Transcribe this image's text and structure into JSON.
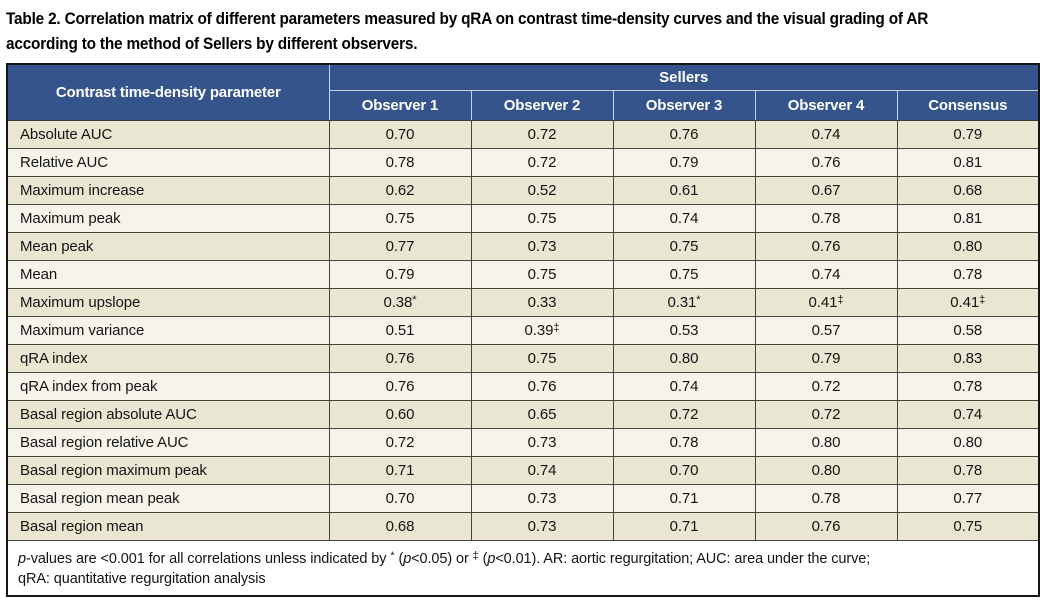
{
  "title": {
    "line1": "Table 2. Correlation matrix of different parameters measured by qRA on contrast time-density curves and the visual grading of AR",
    "line2": "according to the method of Sellers by different observers."
  },
  "table": {
    "param_header": "Contrast time-density parameter",
    "group_header": "Sellers",
    "observer_columns": [
      "Observer 1",
      "Observer 2",
      "Observer 3",
      "Observer 4",
      "Consensus"
    ],
    "rows": [
      {
        "param": "Absolute AUC",
        "values": [
          "0.70",
          "0.72",
          "0.76",
          "0.74",
          "0.79"
        ]
      },
      {
        "param": "Relative AUC",
        "values": [
          "0.78",
          "0.72",
          "0.79",
          "0.76",
          "0.81"
        ]
      },
      {
        "param": "Maximum increase",
        "values": [
          "0.62",
          "0.52",
          "0.61",
          "0.67",
          "0.68"
        ]
      },
      {
        "param": "Maximum peak",
        "values": [
          "0.75",
          "0.75",
          "0.74",
          "0.78",
          "0.81"
        ]
      },
      {
        "param": "Mean peak",
        "values": [
          "0.77",
          "0.73",
          "0.75",
          "0.76",
          "0.80"
        ]
      },
      {
        "param": "Mean",
        "values": [
          "0.79",
          "0.75",
          "0.75",
          "0.74",
          "0.78"
        ]
      },
      {
        "param": "Maximum upslope",
        "values": [
          "0.38*",
          "0.33",
          "0.31*",
          "0.41‡",
          "0.41‡"
        ]
      },
      {
        "param": "Maximum variance",
        "values": [
          "0.51",
          "0.39‡",
          "0.53",
          "0.57",
          "0.58"
        ]
      },
      {
        "param": "qRA index",
        "values": [
          "0.76",
          "0.75",
          "0.80",
          "0.79",
          "0.83"
        ]
      },
      {
        "param": "qRA index from peak",
        "values": [
          "0.76",
          "0.76",
          "0.74",
          "0.72",
          "0.78"
        ]
      },
      {
        "param": "Basal region absolute AUC",
        "values": [
          "0.60",
          "0.65",
          "0.72",
          "0.72",
          "0.74"
        ]
      },
      {
        "param": "Basal region relative AUC",
        "values": [
          "0.72",
          "0.73",
          "0.78",
          "0.80",
          "0.80"
        ]
      },
      {
        "param": "Basal region maximum peak",
        "values": [
          "0.71",
          "0.74",
          "0.70",
          "0.80",
          "0.78"
        ]
      },
      {
        "param": "Basal region mean peak",
        "values": [
          "0.70",
          "0.73",
          "0.71",
          "0.78",
          "0.77"
        ]
      },
      {
        "param": "Basal region mean",
        "values": [
          "0.68",
          "0.73",
          "0.71",
          "0.76",
          "0.75"
        ]
      }
    ]
  },
  "footnote": {
    "full_text": "p-values are <0.001 for all correlations unless indicated by * (p<0.05) or ‡ (p<0.01). AR: aortic regurgitation; AUC: area under the curve; qRA: quantitative regurgitation analysis",
    "segments": [
      {
        "t": "p",
        "it": true
      },
      {
        "t": "-values are <0.001 for all correlations unless indicated by "
      },
      {
        "t": "*",
        "sup": true
      },
      {
        "t": " ("
      },
      {
        "t": "p",
        "it": true
      },
      {
        "t": "<0.05) or "
      },
      {
        "t": "‡",
        "sup": true
      },
      {
        "t": " ("
      },
      {
        "t": "p",
        "it": true
      },
      {
        "t": "<0.01). AR: aortic regurgitation; AUC: area under the curve;"
      },
      {
        "br": true
      },
      {
        "t": "qRA: quantitative regurgitation analysis"
      }
    ]
  },
  "colors": {
    "header_bg": "#35548b",
    "header_text": "#ffffff",
    "row_odd_bg": "#e9e6d1",
    "row_even_bg": "#f6f4ea",
    "grid_border": "#45453d",
    "outer_border": "#161614",
    "header_grid": "#ccd3e2"
  }
}
